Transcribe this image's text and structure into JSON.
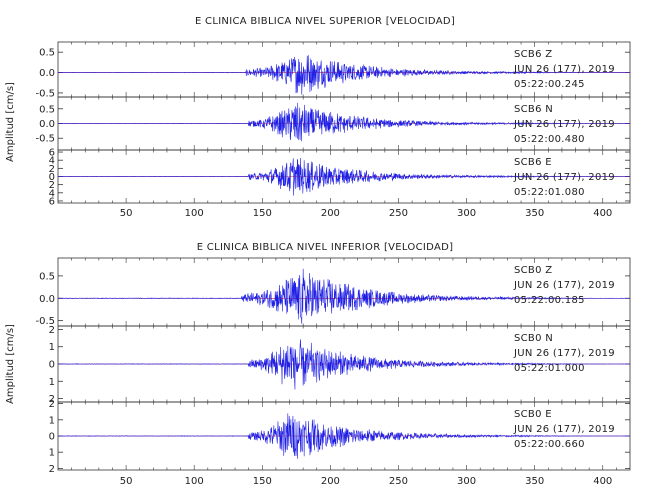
{
  "chart_data": [
    {
      "type": "line",
      "title": "E CLINICA BIBLICA NIVEL SUPERIOR [VELOCIDAD]",
      "ylabel": "Amplitud [cm/s]",
      "xlim": [
        0,
        420
      ],
      "xticks": [
        50,
        100,
        150,
        200,
        250,
        300,
        350,
        400
      ],
      "trace_color": "#1f1fe6",
      "zero_line_color": "#e02020",
      "series": [
        {
          "name": "SCB6 Z",
          "date": "JUN 26 (177), 2019",
          "time": "05:22:00.245",
          "ylim": [
            -0.6,
            0.75
          ],
          "yticks": [
            0.5,
            0.0,
            -0.5
          ],
          "yticklabels": [
            "0.5",
            "0.0",
            "-0.5"
          ],
          "peak": 0.6,
          "onset": 138,
          "peak_time": 178
        },
        {
          "name": "SCB6 N",
          "date": "JUN 26 (177), 2019",
          "time": "05:22:00.480",
          "ylim": [
            -0.9,
            0.9
          ],
          "yticks": [
            0.5,
            0.0,
            -0.5
          ],
          "yticklabels": [
            "0.5",
            "0.0",
            "-0.5"
          ],
          "peak": 0.8,
          "onset": 140,
          "peak_time": 174
        },
        {
          "name": "SCB6 E",
          "date": "JUN 26 (177), 2019",
          "time": "05:22:01.080",
          "ylim": [
            -6.5,
            6.5
          ],
          "yticks": [
            6,
            4,
            2,
            0,
            -2,
            -4,
            -6
          ],
          "yticklabels": [
            "6",
            "4",
            "2",
            "0",
            "2",
            "4",
            "6"
          ],
          "peak": 5.5,
          "onset": 140,
          "peak_time": 172
        }
      ]
    },
    {
      "type": "line",
      "title": "E CLINICA BIBLICA NIVEL INFERIOR [VELOCIDAD]",
      "ylabel": "Amplitud [cm/s]",
      "xlim": [
        0,
        420
      ],
      "xticks": [
        50,
        100,
        150,
        200,
        250,
        300,
        350,
        400
      ],
      "trace_color": "#1f1fe6",
      "zero_line_color": "#e02020",
      "series": [
        {
          "name": "SCB0 Z",
          "date": "JUN 26 (177), 2019",
          "time": "05:22:00.185",
          "ylim": [
            -0.62,
            0.9
          ],
          "yticks": [
            0.5,
            0.0,
            -0.5
          ],
          "yticklabels": [
            "0.5",
            "0.0",
            "-0.5"
          ],
          "peak": 0.75,
          "onset": 135,
          "peak_time": 178
        },
        {
          "name": "SCB0 N",
          "date": "JUN 26 (177), 2019",
          "time": "05:22:01.000",
          "ylim": [
            -2.2,
            2.2
          ],
          "yticks": [
            2,
            1,
            0,
            -1,
            -2
          ],
          "yticklabels": [
            "2",
            "1",
            "0",
            "1",
            "2"
          ],
          "peak": 1.8,
          "onset": 140,
          "peak_time": 170
        },
        {
          "name": "SCB0 E",
          "date": "JUN 26 (177), 2019",
          "time": "05:22:00.660",
          "ylim": [
            -2.1,
            2.1
          ],
          "yticks": [
            2,
            1,
            0,
            -1,
            -2
          ],
          "yticklabels": [
            "2",
            "1",
            "0",
            "1",
            "2"
          ],
          "peak": 1.7,
          "onset": 140,
          "peak_time": 170
        }
      ]
    }
  ]
}
